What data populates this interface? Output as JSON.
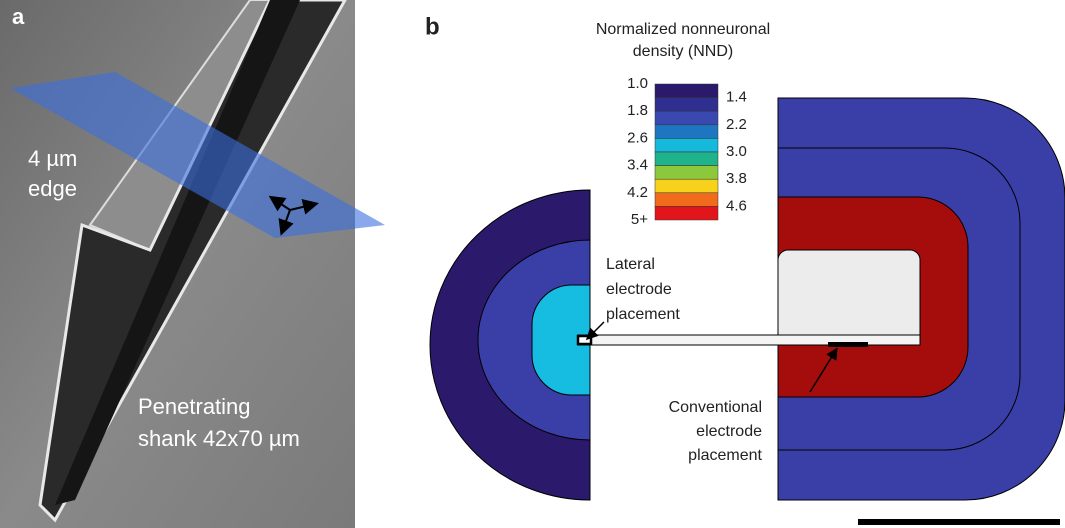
{
  "panel_a": {
    "label": "a",
    "edge_label": [
      "4 µm",
      "edge"
    ],
    "shank_label": [
      "Penetrating",
      "shank 42x70 µm"
    ]
  },
  "panel_b": {
    "label": "b",
    "legend": {
      "title": [
        "Normalized nonneuronal",
        "density (NND)"
      ],
      "left_labels": [
        "1.0",
        "1.8",
        "2.6",
        "3.4",
        "4.2",
        "5+"
      ],
      "right_labels": [
        "1.4",
        "2.2",
        "3.0",
        "3.8",
        "4.6"
      ]
    },
    "lateral_label": [
      "Lateral",
      "electrode",
      "placement"
    ],
    "conventional_label": [
      "Conventional",
      "electrode",
      "placement"
    ]
  }
}
